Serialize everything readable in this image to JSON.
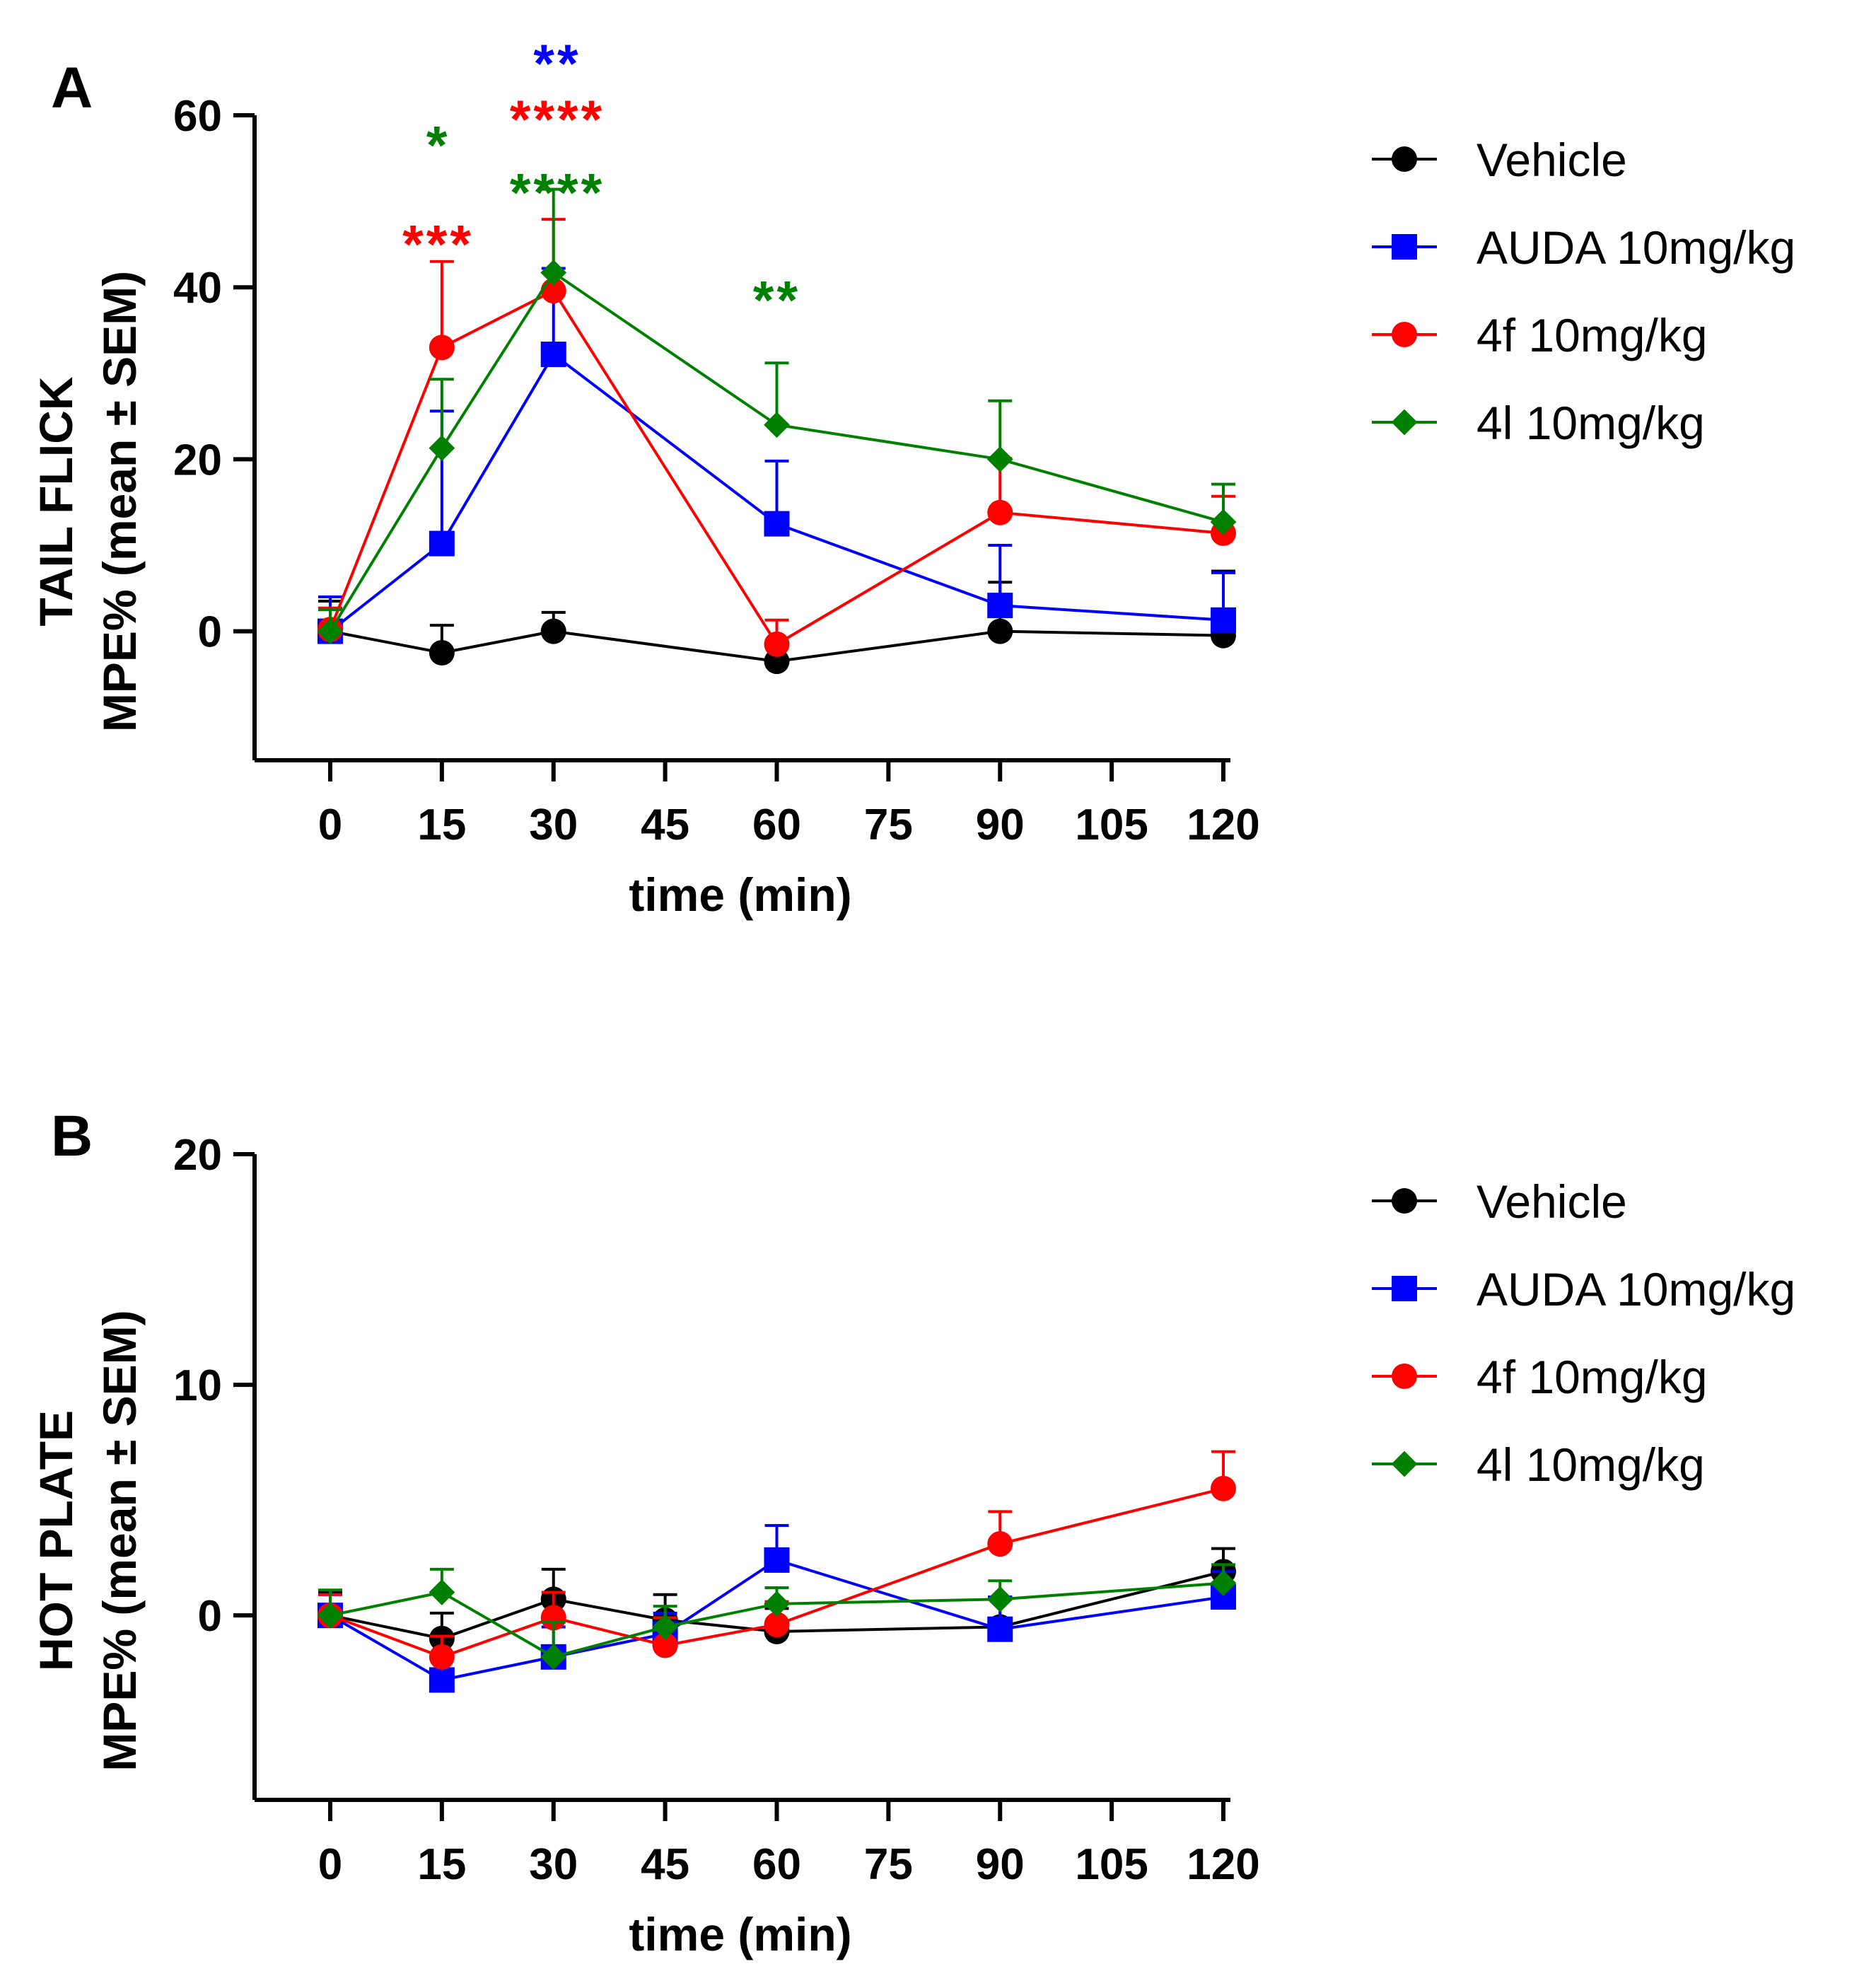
{
  "colors": {
    "Vehicle": "#000000",
    "AUDA 10mg/kg": "#0000ff",
    "4f 10mg/kg": "#ff0000",
    "4l 10mg/kg": "#008000"
  },
  "chart_data": [
    {
      "type": "line",
      "panel_label": "A",
      "title": "",
      "ylabel_line1": "TAIL FLICK",
      "ylabel_line2": "MPE% (mean ± SEM)",
      "xlabel": "time (min)",
      "ylim": [
        -15,
        60
      ],
      "xlim": [
        -10,
        120
      ],
      "yticks": [
        0,
        20,
        40,
        60
      ],
      "xticks": [
        0,
        15,
        30,
        45,
        60,
        75,
        90,
        105,
        120
      ],
      "grid": false,
      "legend_position": "right",
      "series": [
        {
          "name": "Vehicle",
          "marker": "circle",
          "x": [
            0,
            15,
            30,
            60,
            90,
            120
          ],
          "y": [
            0,
            -2.5,
            0,
            -3.5,
            0,
            -0.5
          ],
          "err": [
            3.5,
            3.2,
            2.2,
            0,
            5.7,
            7.5
          ]
        },
        {
          "name": "AUDA 10mg/kg",
          "marker": "square",
          "x": [
            0,
            15,
            30,
            60,
            90,
            120
          ],
          "y": [
            0,
            10.2,
            32.2,
            12.5,
            3,
            1.3
          ],
          "err": [
            4,
            15.4,
            10,
            7.3,
            7,
            5.5
          ]
        },
        {
          "name": "4f 10mg/kg",
          "marker": "circle",
          "x": [
            0,
            15,
            30,
            60,
            90,
            120
          ],
          "y": [
            0.2,
            33,
            39.6,
            -1.5,
            13.8,
            11.4
          ],
          "err": [
            2.5,
            10,
            8.3,
            2.8,
            6.3,
            4.3
          ]
        },
        {
          "name": "4l 10mg/kg",
          "marker": "diamond",
          "x": [
            0,
            15,
            30,
            60,
            90,
            120
          ],
          "y": [
            0,
            21.3,
            41.7,
            24,
            20,
            12.7
          ],
          "err": [
            2.5,
            8,
            9.7,
            7.2,
            6.8,
            4.4
          ]
        }
      ],
      "annotations": [
        {
          "text": "*",
          "x": 14.5,
          "y": 56.5,
          "series": "4l 10mg/kg"
        },
        {
          "text": "***",
          "x": 14.5,
          "y": 45,
          "series": "4f 10mg/kg"
        },
        {
          "text": "**",
          "x": 30.5,
          "y": 66,
          "series": "AUDA 10mg/kg"
        },
        {
          "text": "****",
          "x": 30.5,
          "y": 59.5,
          "series": "4f 10mg/kg"
        },
        {
          "text": "****",
          "x": 30.5,
          "y": 51,
          "series": "4l 10mg/kg"
        },
        {
          "text": "**",
          "x": 60,
          "y": 38.5,
          "series": "4l 10mg/kg"
        }
      ]
    },
    {
      "type": "line",
      "panel_label": "B",
      "title": "",
      "ylabel_line1": "HOT PLATE",
      "ylabel_line2": "MPE% (mean ± SEM)",
      "xlabel": "time (min)",
      "ylim": [
        -8,
        20
      ],
      "xlim": [
        -10,
        120
      ],
      "yticks": [
        0,
        10,
        20
      ],
      "xticks": [
        0,
        15,
        30,
        45,
        60,
        75,
        90,
        105,
        120
      ],
      "grid": false,
      "legend_position": "right",
      "series": [
        {
          "name": "Vehicle",
          "marker": "circle",
          "x": [
            0,
            15,
            30,
            45,
            60,
            90,
            120
          ],
          "y": [
            0,
            -1,
            0.7,
            -0.2,
            -0.7,
            -0.5,
            1.9
          ],
          "err": [
            1,
            1.1,
            1.3,
            1.1,
            1,
            1.3,
            1
          ]
        },
        {
          "name": "AUDA 10mg/kg",
          "marker": "square",
          "x": [
            0,
            15,
            30,
            45,
            60,
            90,
            120
          ],
          "y": [
            0,
            -2.8,
            -1.8,
            -0.8,
            2.4,
            -0.6,
            0.8
          ],
          "err": [
            0.9,
            0,
            1.3,
            0.9,
            1.5,
            1.4,
            1.1
          ]
        },
        {
          "name": "4f 10mg/kg",
          "marker": "circle",
          "x": [
            0,
            15,
            30,
            45,
            60,
            90,
            120
          ],
          "y": [
            0,
            -1.8,
            -0.1,
            -1.3,
            -0.4,
            3.1,
            5.5
          ],
          "err": [
            0.9,
            0.9,
            1.1,
            1.2,
            1,
            1.4,
            1.6
          ]
        },
        {
          "name": "4l 10mg/kg",
          "marker": "diamond",
          "x": [
            0,
            15,
            30,
            45,
            60,
            90,
            120
          ],
          "y": [
            0,
            1,
            -1.8,
            -0.5,
            0.5,
            0.7,
            1.4
          ],
          "err": [
            1.1,
            1,
            1.5,
            0.9,
            0.7,
            0.8,
            0.8
          ]
        }
      ],
      "annotations": []
    }
  ]
}
